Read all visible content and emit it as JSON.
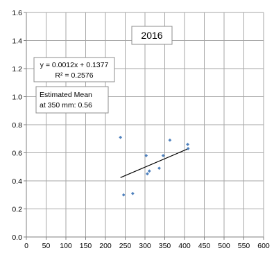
{
  "chart_data": {
    "type": "scatter",
    "title": "2016",
    "xlim": [
      0,
      600
    ],
    "ylim": [
      0.0,
      1.6
    ],
    "x_ticks": [
      "0",
      "50",
      "100",
      "150",
      "200",
      "250",
      "300",
      "350",
      "400",
      "450",
      "500",
      "550",
      "600"
    ],
    "y_ticks": [
      "0.0",
      "0.2",
      "0.4",
      "0.6",
      "0.8",
      "1.0",
      "1.2",
      "1.4",
      "1.6"
    ],
    "grid": true,
    "series": [
      {
        "points": [
          {
            "x": 238,
            "y": 0.71
          },
          {
            "x": 246,
            "y": 0.3
          },
          {
            "x": 269,
            "y": 0.31
          },
          {
            "x": 303,
            "y": 0.58
          },
          {
            "x": 306,
            "y": 0.45
          },
          {
            "x": 311,
            "y": 0.47
          },
          {
            "x": 336,
            "y": 0.49
          },
          {
            "x": 346,
            "y": 0.58
          },
          {
            "x": 363,
            "y": 0.69
          },
          {
            "x": 408,
            "y": 0.66
          },
          {
            "x": 409,
            "y": 0.63
          }
        ],
        "color": "#4f81bd"
      }
    ],
    "trendline": {
      "slope": 0.0012,
      "intercept": 0.1377,
      "x_range": [
        238,
        409
      ],
      "equation_label": "y = 0.0012x + 0.1377",
      "r2_label": "R² = 0.2576"
    },
    "annotation": {
      "line1": "Estimated Mean",
      "line2": "at 350 mm: 0.56"
    }
  }
}
